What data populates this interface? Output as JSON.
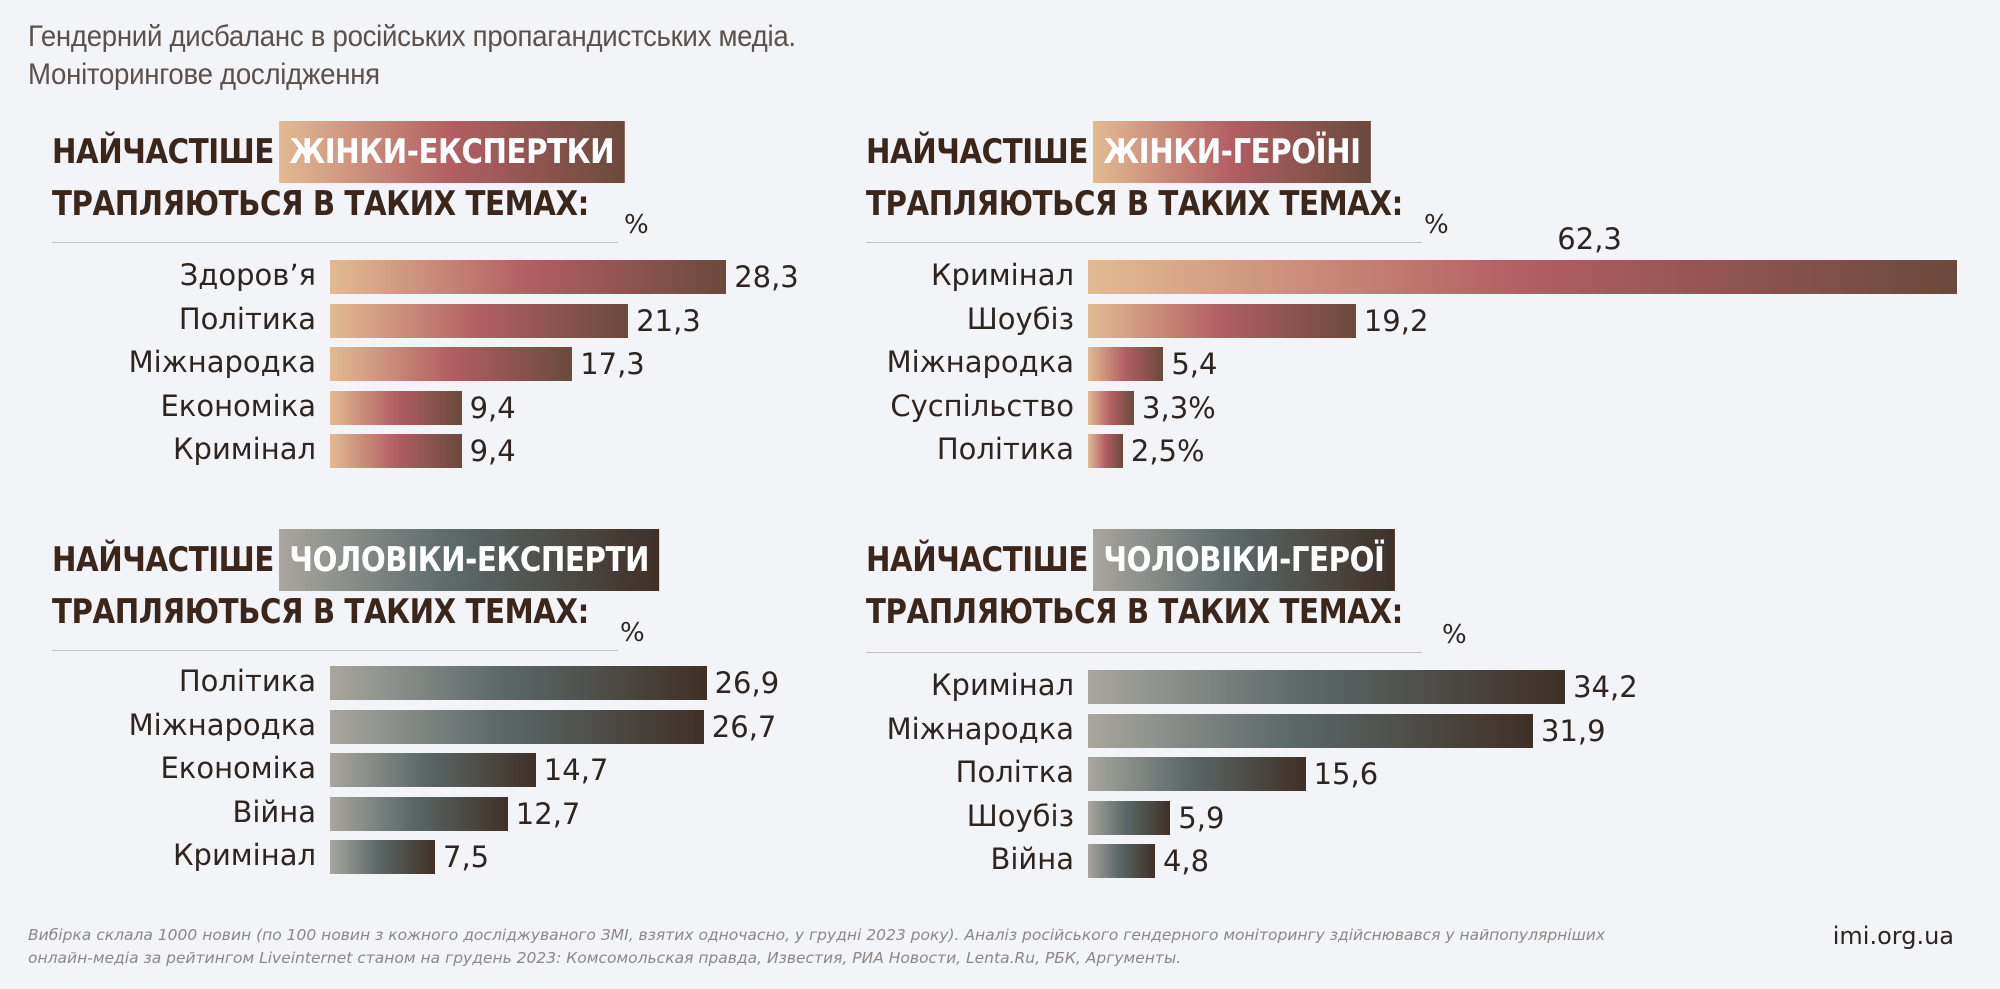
{
  "title": {
    "line1": "Гендерний дисбаланс в російських пропагандистських медіа.",
    "line2": "Моніторингове дослідження"
  },
  "chart_data": [
    {
      "type": "bar",
      "title_lead": "НАЙЧАСТІШЕ",
      "title_highlight": "ЖІНКИ-ЕКСПЕРТКИ",
      "title_line2": "ТРАПЛЯЮТЬСЯ  В ТАКИХ ТЕМАХ:",
      "unit": "%",
      "categories": [
        "Здоров’я",
        "Політика",
        "Міжнародка",
        "Економіка",
        "Кримінал"
      ],
      "values": [
        28.3,
        21.3,
        17.3,
        9.4,
        9.4
      ],
      "value_labels": [
        "28,3",
        "21,3",
        "17,3",
        "9,4",
        "9,4"
      ],
      "color_scheme": "women",
      "colors": [
        "#e2bb92",
        "#b25e63",
        "#6a4a3c"
      ]
    },
    {
      "type": "bar",
      "title_lead": "НАЙЧАСТІШЕ",
      "title_highlight": "ЖІНКИ-ГЕРОЇНІ",
      "title_line2": "ТРАПЛЯЮТЬСЯ В ТАКИХ ТЕМАХ:",
      "unit": "%",
      "categories": [
        "Кримінал",
        "Шоубіз",
        "Міжнародка",
        "Суспільство",
        "Політика"
      ],
      "values": [
        62.3,
        19.2,
        5.4,
        3.3,
        2.5
      ],
      "value_labels": [
        "62,3",
        "19,2",
        "5,4",
        "3,3%",
        "2,5%"
      ],
      "color_scheme": "women",
      "colors": [
        "#e2bb92",
        "#b25e63",
        "#6a4a3c"
      ]
    },
    {
      "type": "bar",
      "title_lead": "НАЙЧАСТІШЕ",
      "title_highlight": "ЧОЛОВІКИ-ЕКСПЕРТИ",
      "title_line2": "ТРАПЛЯЮТЬСЯ В ТАКИХ ТЕМАХ:",
      "unit": "%",
      "categories": [
        "Політика",
        "Міжнародка",
        "Економіка",
        "Війна",
        "Кримінал"
      ],
      "values": [
        26.9,
        26.7,
        14.7,
        12.7,
        7.5
      ],
      "value_labels": [
        "26,9",
        "26,7",
        "14,7",
        "12,7",
        "7,5"
      ],
      "color_scheme": "men",
      "colors": [
        "#a9a69f",
        "#5c6969",
        "#3f3027"
      ]
    },
    {
      "type": "bar",
      "title_lead": "НАЙЧАСТІШЕ",
      "title_highlight": "ЧОЛОВІКИ-ГЕРОЇ",
      "title_line2": "ТРАПЛЯЮТЬСЯ В ТАКИХ ТЕМАХ:",
      "unit": "%",
      "categories": [
        "Кримінал",
        "Міжнародка",
        "Політка",
        "Шоубіз",
        "Війна"
      ],
      "values": [
        34.2,
        31.9,
        15.6,
        5.9,
        4.8
      ],
      "value_labels": [
        "34,2",
        "31,9",
        "15,6",
        "5,9",
        "4,8"
      ],
      "color_scheme": "men",
      "colors": [
        "#a9a69f",
        "#5c6969",
        "#3f3027"
      ]
    }
  ],
  "footer": {
    "note": "Вибірка склала 1000 новин (по 100 новин з кожного досліджуваного ЗМІ, взятих одночасно, у грудні 2023 року). Аналіз російського гендерного моніторингу здійснювався у найпопулярніших онлайн-медіа за рейтингом Liveinternet станом на грудень 2023: Комсомольская правда, Известия, РИА Новости, Lenta.Ru, РБК, Аргументы.",
    "site": "imi.org.ua"
  }
}
